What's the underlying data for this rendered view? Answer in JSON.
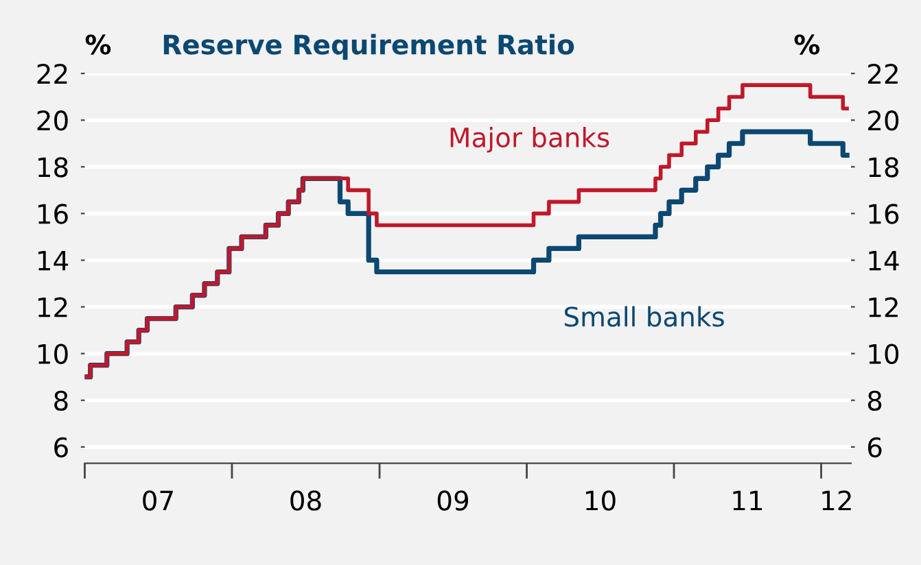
{
  "chart_data": {
    "type": "step",
    "title": "Reserve Requirement Ratio",
    "ylabel": "%",
    "y2label": "%",
    "series": [
      {
        "name": "Major banks",
        "color": "#c0182a",
        "x": [
          "2007-01-01",
          "2007-01-15",
          "2007-02-25",
          "2007-04-16",
          "2007-05-15",
          "2007-06-05",
          "2007-08-15",
          "2007-09-25",
          "2007-10-25",
          "2007-11-26",
          "2007-12-25",
          "2008-01-25",
          "2008-03-25",
          "2008-04-25",
          "2008-05-20",
          "2008-06-15",
          "2008-06-25",
          "2008-10-15",
          "2008-12-05",
          "2008-12-25",
          "2010-01-18",
          "2010-02-25",
          "2010-05-10",
          "2010-11-16",
          "2010-11-29",
          "2010-12-20",
          "2011-01-20",
          "2011-02-24",
          "2011-03-25",
          "2011-04-21",
          "2011-05-18",
          "2011-06-20",
          "2011-12-05",
          "2012-02-24",
          "2012-03-05"
        ],
        "values": [
          9,
          9.5,
          10,
          10.5,
          11,
          11.5,
          12,
          12.5,
          13,
          13.5,
          14.5,
          15,
          15.5,
          16,
          16.5,
          17,
          17.5,
          17,
          16,
          15.5,
          16,
          16.5,
          17,
          17.5,
          18,
          18.5,
          19,
          19.5,
          20,
          20.5,
          21,
          21.5,
          21,
          20.5,
          20.5
        ]
      },
      {
        "name": "Small banks",
        "color": "#0b4872",
        "x": [
          "2007-01-01",
          "2007-01-15",
          "2007-02-25",
          "2007-04-16",
          "2007-05-15",
          "2007-06-05",
          "2007-08-15",
          "2007-09-25",
          "2007-10-25",
          "2007-11-26",
          "2007-12-25",
          "2008-01-25",
          "2008-03-25",
          "2008-04-25",
          "2008-05-20",
          "2008-06-15",
          "2008-06-25",
          "2008-09-25",
          "2008-10-15",
          "2008-12-05",
          "2008-12-25",
          "2010-01-18",
          "2010-02-25",
          "2010-05-10",
          "2010-11-16",
          "2010-11-29",
          "2010-12-20",
          "2011-01-20",
          "2011-02-24",
          "2011-03-25",
          "2011-04-21",
          "2011-05-18",
          "2011-06-20",
          "2011-12-05",
          "2012-02-24",
          "2012-03-05"
        ],
        "values": [
          9,
          9.5,
          10,
          10.5,
          11,
          11.5,
          12,
          12.5,
          13,
          13.5,
          14.5,
          15,
          15.5,
          16,
          16.5,
          17,
          17.5,
          16.5,
          16,
          14,
          13.5,
          14,
          14.5,
          15,
          15.5,
          16,
          16.5,
          17,
          17.5,
          18,
          18.5,
          19,
          19.5,
          19,
          18.5,
          18.5
        ]
      }
    ],
    "xlim": [
      "2007-01-01",
      "2012-03-15"
    ],
    "xticks": [
      {
        "value": "2007-01-01",
        "label": null
      },
      {
        "value": "2007-07-02",
        "label": "07"
      },
      {
        "value": "2008-01-01",
        "label": null
      },
      {
        "value": "2008-07-02",
        "label": "08"
      },
      {
        "value": "2009-01-01",
        "label": null
      },
      {
        "value": "2009-07-02",
        "label": "09"
      },
      {
        "value": "2010-01-01",
        "label": null
      },
      {
        "value": "2010-07-02",
        "label": "10"
      },
      {
        "value": "2011-01-01",
        "label": null
      },
      {
        "value": "2011-07-02",
        "label": "11"
      },
      {
        "value": "2012-01-01",
        "label": null
      },
      {
        "value": "2012-02-08",
        "label": "12"
      }
    ],
    "ylim": [
      5.3,
      22
    ],
    "yticks": [
      6,
      8,
      10,
      12,
      14,
      16,
      18,
      20,
      22
    ],
    "y2lim": [
      5.3,
      22
    ],
    "y2ticks": [
      6,
      8,
      10,
      12,
      14,
      16,
      18,
      20,
      22
    ],
    "grid": "y",
    "line_style": "solid",
    "marker": "none",
    "legend": false
  }
}
